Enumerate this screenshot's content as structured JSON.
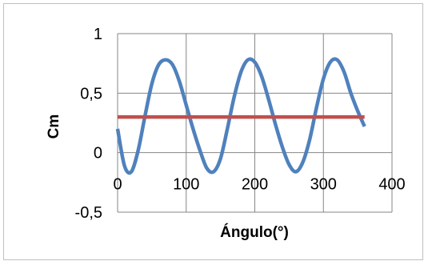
{
  "chart_data": {
    "type": "line",
    "title": "",
    "xlabel": "Ángulo(°)",
    "ylabel": "Cm",
    "xlim": [
      0,
      400
    ],
    "ylim": [
      -0.5,
      1
    ],
    "grid": true,
    "legend": "none",
    "x_ticks": [
      0,
      100,
      200,
      300,
      400
    ],
    "y_ticks": [
      1,
      0.5,
      0,
      -0.5
    ],
    "x_tick_labels": [
      "0",
      "100",
      "200",
      "300",
      "400"
    ],
    "y_tick_labels": [
      "1",
      "0,5",
      "0",
      "-0,5"
    ],
    "series": [
      {
        "color": "#4f81bd",
        "x": [
          0,
          10,
          20,
          30,
          40,
          50,
          60,
          70,
          80,
          90,
          100,
          110,
          120,
          130,
          140,
          150,
          160,
          170,
          180,
          190,
          200,
          210,
          220,
          230,
          240,
          250,
          260,
          270,
          280,
          290,
          300,
          310,
          320,
          330,
          340,
          350,
          360
        ],
        "y": [
          0.2,
          -0.11,
          -0.16,
          0.02,
          0.31,
          0.58,
          0.74,
          0.78,
          0.74,
          0.6,
          0.4,
          0.2,
          0.02,
          -0.13,
          -0.16,
          -0.05,
          0.2,
          0.47,
          0.68,
          0.78,
          0.76,
          0.64,
          0.45,
          0.24,
          0.05,
          -0.1,
          -0.16,
          -0.08,
          0.11,
          0.38,
          0.62,
          0.76,
          0.78,
          0.68,
          0.5,
          0.35,
          0.22
        ]
      },
      {
        "color": "#c0504d",
        "x": [
          0,
          360
        ],
        "y": [
          0.3,
          0.3
        ]
      }
    ]
  }
}
